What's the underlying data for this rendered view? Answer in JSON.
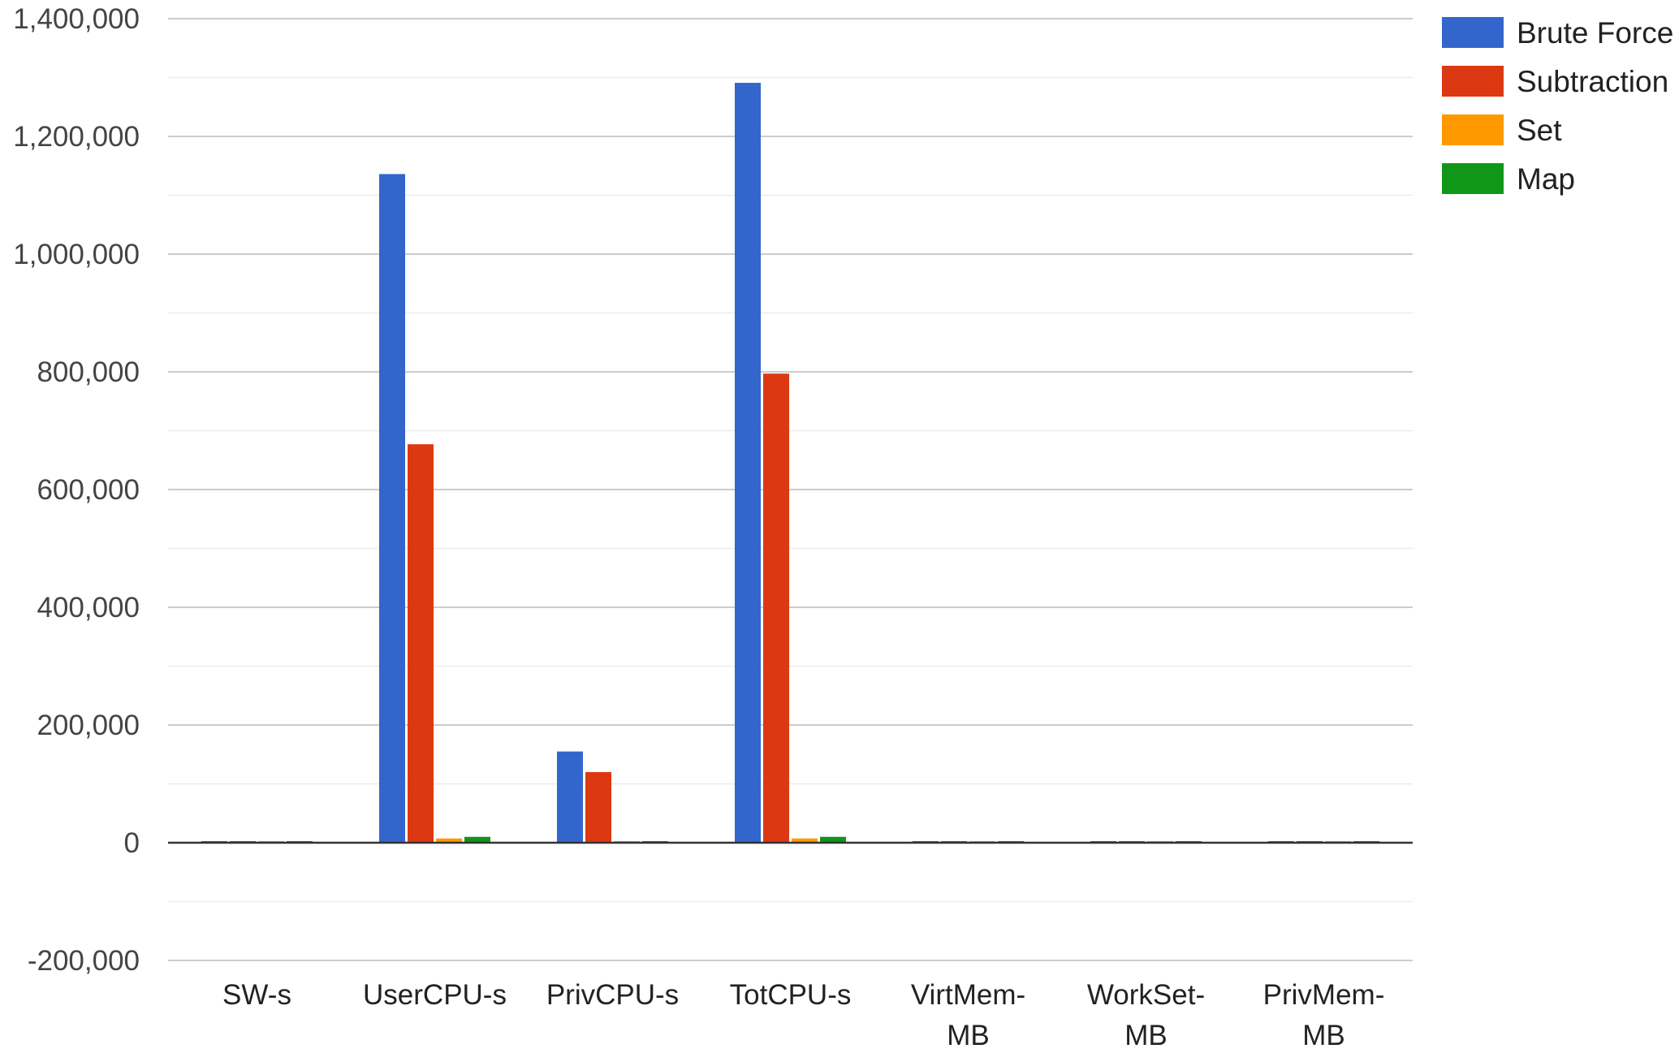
{
  "chart_data": {
    "type": "bar",
    "categories": [
      [
        "SW-s"
      ],
      [
        "UserCPU-s"
      ],
      [
        "PrivCPU-s"
      ],
      [
        "TotCPU-s"
      ],
      [
        "VirtMem-",
        "MB"
      ],
      [
        "WorkSet-",
        "MB"
      ],
      [
        "PrivMem-",
        "MB"
      ]
    ],
    "series": [
      {
        "name": "Brute Force",
        "color": "#3366cc",
        "values": [
          1200,
          1136000,
          155000,
          1291000,
          350,
          150,
          300
        ]
      },
      {
        "name": "Subtraction",
        "color": "#dc3912",
        "values": [
          900,
          677000,
          120000,
          797000,
          600,
          200,
          500
        ]
      },
      {
        "name": "Set",
        "color": "#ff9900",
        "values": [
          150,
          7200,
          120,
          7300,
          120,
          60,
          90
        ]
      },
      {
        "name": "Map",
        "color": "#109618",
        "values": [
          100,
          10000,
          100,
          10000,
          150,
          70,
          100
        ]
      }
    ],
    "yticks": [
      "1,400,000",
      "1,200,000",
      "1,000,000",
      "800,000",
      "600,000",
      "400,000",
      "200,000",
      "0",
      "-200,000"
    ],
    "ylim": [
      -200000,
      1400000
    ],
    "grid": true,
    "legend_position": "right",
    "title": "",
    "xlabel": "",
    "ylabel": ""
  }
}
